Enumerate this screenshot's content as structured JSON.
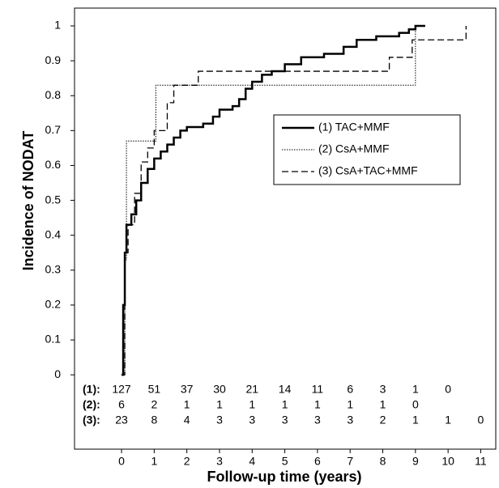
{
  "chart_data": {
    "type": "step",
    "x_label": "Follow-up time (years)",
    "y_label": "Incidence of NODAT",
    "xlim": [
      -1.44,
      11.46
    ],
    "ylim": [
      -0.213,
      1.051
    ],
    "xticks": [
      0,
      1,
      2,
      3,
      4,
      5,
      6,
      7,
      8,
      9,
      10,
      11
    ],
    "yticks": [
      0,
      0.1,
      0.2,
      0.3,
      0.4,
      0.5,
      0.6,
      0.7,
      0.8,
      0.9,
      1
    ],
    "legend": "upper right",
    "series": [
      {
        "name": "(1) TAC+MMF",
        "color": "#000000",
        "line_style": "solid",
        "x": [
          0,
          0.05,
          0.1,
          0.15,
          0.3,
          0.45,
          0.6,
          0.8,
          1.0,
          1.2,
          1.4,
          1.6,
          1.8,
          2.0,
          2.5,
          2.8,
          3.0,
          3.4,
          3.6,
          3.8,
          4.0,
          4.3,
          4.6,
          5.0,
          5.5,
          6.2,
          6.8,
          7.2,
          7.8,
          8.5,
          8.8,
          9.0,
          9.3
        ],
        "values": [
          0,
          0.2,
          0.35,
          0.43,
          0.46,
          0.5,
          0.55,
          0.59,
          0.62,
          0.64,
          0.66,
          0.68,
          0.7,
          0.71,
          0.72,
          0.74,
          0.76,
          0.77,
          0.79,
          0.82,
          0.84,
          0.86,
          0.87,
          0.89,
          0.91,
          0.92,
          0.94,
          0.96,
          0.97,
          0.98,
          0.99,
          1.0,
          1.0
        ]
      },
      {
        "name": "(2) CsA+MMF",
        "color": "#000000",
        "line_style": "dotted",
        "x": [
          0,
          0.1,
          0.15,
          1.0,
          1.05,
          8.95,
          9.0
        ],
        "values": [
          0,
          0.33,
          0.67,
          0.67,
          0.83,
          0.83,
          1.0
        ]
      },
      {
        "name": "(3) CsA+TAC+MMF",
        "color": "#000000",
        "line_style": "dashed",
        "x": [
          0,
          0.1,
          0.2,
          0.4,
          0.6,
          0.8,
          1.0,
          1.4,
          1.6,
          2.35,
          7.8,
          8.2,
          8.9,
          10.55
        ],
        "values": [
          0,
          0.35,
          0.43,
          0.52,
          0.61,
          0.65,
          0.7,
          0.78,
          0.83,
          0.87,
          0.87,
          0.91,
          0.96,
          1.0
        ]
      }
    ],
    "risk_table": [
      {
        "label": "(1):",
        "values": [
          127,
          51,
          37,
          30,
          21,
          14,
          11,
          6,
          3,
          1,
          0
        ]
      },
      {
        "label": "(2):",
        "values": [
          6,
          2,
          1,
          1,
          1,
          1,
          1,
          1,
          1,
          0
        ]
      },
      {
        "label": "(3):",
        "values": [
          23,
          8,
          4,
          3,
          3,
          3,
          3,
          3,
          2,
          1,
          1,
          0
        ]
      }
    ]
  }
}
